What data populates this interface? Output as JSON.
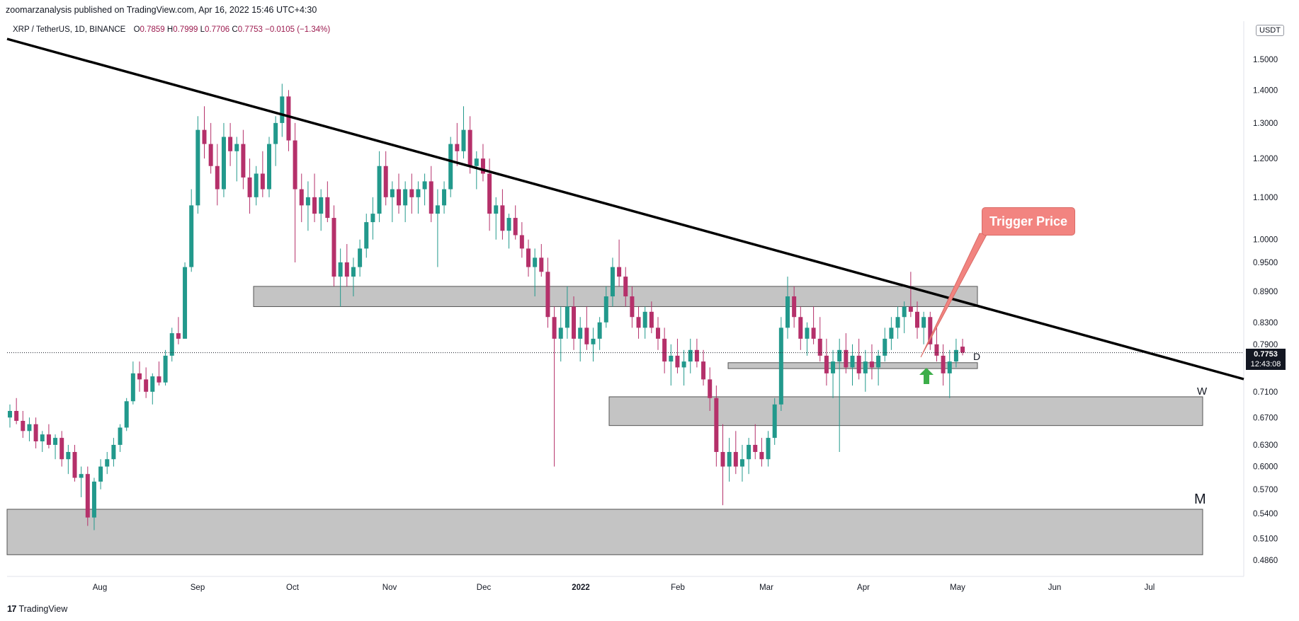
{
  "header": {
    "publisher": "zoomarzanalysis published on TradingView.com, Apr 16, 2022 15:46 UTC+4:30"
  },
  "symbol": {
    "name": "XRP / TetherUS, 1D, BINANCE",
    "open_label": "O",
    "open": "0.7859",
    "high_label": "H",
    "high": "0.7999",
    "low_label": "L",
    "low": "0.7706",
    "close_label": "C",
    "close": "0.7753",
    "change": "−0.0105 (−1.34%)"
  },
  "price_axis": {
    "unit": "USDT",
    "current_price": "0.7753",
    "countdown": "12:43:08"
  },
  "annotations": {
    "callout": "Trigger Price",
    "label_d": "D",
    "label_w": "W",
    "label_m": "M"
  },
  "footer": {
    "brand": "TradingView"
  },
  "colors": {
    "up": "#22998c",
    "down": "#b5306a",
    "zone_fill": "#c4c4c4",
    "trendline": "#000000",
    "callout": "#f28480",
    "arrow": "#3cae49"
  },
  "chart_data": {
    "type": "candlestick",
    "y_scale": "log",
    "y_ticks": [
      "1.5000",
      "1.4000",
      "1.3000",
      "1.2000",
      "1.1000",
      "1.0000",
      "0.9500",
      "0.8900",
      "0.8300",
      "0.7900",
      "0.7100",
      "0.6700",
      "0.6300",
      "0.6000",
      "0.5700",
      "0.5400",
      "0.5100",
      "0.4860"
    ],
    "x_ticks": [
      "Aug",
      "Sep",
      "Oct",
      "Nov",
      "Dec",
      "2022",
      "Feb",
      "Mar",
      "Apr",
      "May",
      "Jun",
      "Jul"
    ],
    "candles": [
      [
        0.67,
        0.69,
        0.655,
        0.68
      ],
      [
        0.68,
        0.7,
        0.66,
        0.665
      ],
      [
        0.665,
        0.68,
        0.64,
        0.65
      ],
      [
        0.65,
        0.67,
        0.635,
        0.66
      ],
      [
        0.66,
        0.67,
        0.625,
        0.635
      ],
      [
        0.635,
        0.65,
        0.62,
        0.645
      ],
      [
        0.645,
        0.66,
        0.625,
        0.63
      ],
      [
        0.63,
        0.645,
        0.61,
        0.64
      ],
      [
        0.64,
        0.65,
        0.6,
        0.61
      ],
      [
        0.61,
        0.63,
        0.59,
        0.62
      ],
      [
        0.62,
        0.63,
        0.58,
        0.585
      ],
      [
        0.585,
        0.6,
        0.56,
        0.59
      ],
      [
        0.59,
        0.6,
        0.525,
        0.535
      ],
      [
        0.535,
        0.585,
        0.52,
        0.58
      ],
      [
        0.58,
        0.61,
        0.57,
        0.6
      ],
      [
        0.6,
        0.62,
        0.59,
        0.61
      ],
      [
        0.61,
        0.64,
        0.6,
        0.63
      ],
      [
        0.63,
        0.66,
        0.62,
        0.655
      ],
      [
        0.655,
        0.7,
        0.65,
        0.695
      ],
      [
        0.695,
        0.76,
        0.69,
        0.74
      ],
      [
        0.74,
        0.76,
        0.71,
        0.73
      ],
      [
        0.73,
        0.75,
        0.7,
        0.71
      ],
      [
        0.71,
        0.74,
        0.69,
        0.735
      ],
      [
        0.735,
        0.76,
        0.72,
        0.725
      ],
      [
        0.725,
        0.78,
        0.72,
        0.77
      ],
      [
        0.77,
        0.82,
        0.76,
        0.81
      ],
      [
        0.81,
        0.84,
        0.79,
        0.8
      ],
      [
        0.8,
        0.95,
        0.8,
        0.94
      ],
      [
        0.94,
        1.12,
        0.93,
        1.08
      ],
      [
        1.08,
        1.32,
        1.06,
        1.28
      ],
      [
        1.28,
        1.35,
        1.2,
        1.24
      ],
      [
        1.24,
        1.3,
        1.16,
        1.18
      ],
      [
        1.18,
        1.24,
        1.08,
        1.12
      ],
      [
        1.12,
        1.3,
        1.1,
        1.26
      ],
      [
        1.26,
        1.3,
        1.18,
        1.22
      ],
      [
        1.22,
        1.26,
        1.14,
        1.24
      ],
      [
        1.24,
        1.28,
        1.12,
        1.15
      ],
      [
        1.15,
        1.2,
        1.06,
        1.1
      ],
      [
        1.1,
        1.18,
        1.08,
        1.16
      ],
      [
        1.16,
        1.22,
        1.1,
        1.12
      ],
      [
        1.12,
        1.26,
        1.1,
        1.24
      ],
      [
        1.24,
        1.32,
        1.18,
        1.3
      ],
      [
        1.3,
        1.42,
        1.26,
        1.38
      ],
      [
        1.38,
        1.4,
        1.22,
        1.25
      ],
      [
        1.25,
        1.3,
        0.95,
        1.12
      ],
      [
        1.12,
        1.16,
        1.04,
        1.08
      ],
      [
        1.08,
        1.14,
        1.02,
        1.1
      ],
      [
        1.1,
        1.16,
        1.04,
        1.06
      ],
      [
        1.06,
        1.12,
        1.02,
        1.1
      ],
      [
        1.1,
        1.14,
        1.04,
        1.05
      ],
      [
        1.05,
        1.08,
        0.9,
        0.92
      ],
      [
        0.92,
        0.98,
        0.86,
        0.95
      ],
      [
        0.95,
        0.99,
        0.9,
        0.92
      ],
      [
        0.92,
        0.96,
        0.88,
        0.94
      ],
      [
        0.94,
        1.0,
        0.92,
        0.98
      ],
      [
        0.98,
        1.06,
        0.96,
        1.04
      ],
      [
        1.04,
        1.1,
        1.0,
        1.06
      ],
      [
        1.06,
        1.22,
        1.04,
        1.18
      ],
      [
        1.18,
        1.22,
        1.08,
        1.1
      ],
      [
        1.1,
        1.14,
        1.04,
        1.12
      ],
      [
        1.12,
        1.16,
        1.06,
        1.08
      ],
      [
        1.08,
        1.14,
        1.04,
        1.12
      ],
      [
        1.12,
        1.16,
        1.06,
        1.1
      ],
      [
        1.1,
        1.14,
        1.06,
        1.12
      ],
      [
        1.12,
        1.16,
        1.08,
        1.14
      ],
      [
        1.14,
        1.18,
        1.04,
        1.06
      ],
      [
        1.06,
        1.12,
        0.94,
        1.08
      ],
      [
        1.08,
        1.14,
        1.06,
        1.12
      ],
      [
        1.12,
        1.26,
        1.1,
        1.24
      ],
      [
        1.24,
        1.3,
        1.18,
        1.22
      ],
      [
        1.22,
        1.35,
        1.2,
        1.28
      ],
      [
        1.28,
        1.32,
        1.16,
        1.18
      ],
      [
        1.18,
        1.22,
        1.12,
        1.2
      ],
      [
        1.2,
        1.24,
        1.14,
        1.16
      ],
      [
        1.16,
        1.2,
        1.02,
        1.06
      ],
      [
        1.06,
        1.1,
        1.0,
        1.08
      ],
      [
        1.08,
        1.12,
        1.0,
        1.02
      ],
      [
        1.02,
        1.06,
        0.98,
        1.05
      ],
      [
        1.05,
        1.08,
        1.0,
        1.01
      ],
      [
        1.01,
        1.04,
        0.96,
        0.98
      ],
      [
        0.98,
        1.0,
        0.92,
        0.94
      ],
      [
        0.94,
        0.98,
        0.88,
        0.96
      ],
      [
        0.96,
        0.99,
        0.92,
        0.93
      ],
      [
        0.93,
        0.96,
        0.82,
        0.84
      ],
      [
        0.84,
        0.86,
        0.6,
        0.8
      ],
      [
        0.8,
        0.86,
        0.76,
        0.82
      ],
      [
        0.82,
        0.9,
        0.8,
        0.86
      ],
      [
        0.86,
        0.88,
        0.78,
        0.8
      ],
      [
        0.8,
        0.84,
        0.76,
        0.82
      ],
      [
        0.82,
        0.86,
        0.78,
        0.79
      ],
      [
        0.79,
        0.82,
        0.76,
        0.8
      ],
      [
        0.8,
        0.84,
        0.78,
        0.83
      ],
      [
        0.83,
        0.9,
        0.82,
        0.88
      ],
      [
        0.88,
        0.96,
        0.86,
        0.94
      ],
      [
        0.94,
        1.0,
        0.9,
        0.92
      ],
      [
        0.92,
        0.94,
        0.86,
        0.88
      ],
      [
        0.88,
        0.9,
        0.82,
        0.84
      ],
      [
        0.84,
        0.86,
        0.8,
        0.82
      ],
      [
        0.82,
        0.86,
        0.8,
        0.85
      ],
      [
        0.85,
        0.87,
        0.81,
        0.82
      ],
      [
        0.82,
        0.84,
        0.78,
        0.8
      ],
      [
        0.8,
        0.82,
        0.74,
        0.76
      ],
      [
        0.76,
        0.79,
        0.72,
        0.77
      ],
      [
        0.77,
        0.8,
        0.74,
        0.75
      ],
      [
        0.75,
        0.78,
        0.72,
        0.76
      ],
      [
        0.76,
        0.8,
        0.74,
        0.78
      ],
      [
        0.78,
        0.8,
        0.75,
        0.76
      ],
      [
        0.76,
        0.78,
        0.72,
        0.73
      ],
      [
        0.73,
        0.75,
        0.68,
        0.7
      ],
      [
        0.7,
        0.72,
        0.6,
        0.62
      ],
      [
        0.62,
        0.66,
        0.55,
        0.6
      ],
      [
        0.6,
        0.64,
        0.58,
        0.62
      ],
      [
        0.62,
        0.65,
        0.59,
        0.6
      ],
      [
        0.6,
        0.63,
        0.58,
        0.61
      ],
      [
        0.61,
        0.64,
        0.59,
        0.63
      ],
      [
        0.63,
        0.66,
        0.61,
        0.62
      ],
      [
        0.62,
        0.64,
        0.6,
        0.61
      ],
      [
        0.61,
        0.65,
        0.6,
        0.64
      ],
      [
        0.64,
        0.7,
        0.63,
        0.69
      ],
      [
        0.69,
        0.84,
        0.68,
        0.82
      ],
      [
        0.82,
        0.92,
        0.8,
        0.88
      ],
      [
        0.88,
        0.9,
        0.82,
        0.84
      ],
      [
        0.84,
        0.86,
        0.78,
        0.8
      ],
      [
        0.8,
        0.83,
        0.77,
        0.82
      ],
      [
        0.82,
        0.86,
        0.79,
        0.8
      ],
      [
        0.8,
        0.84,
        0.76,
        0.77
      ],
      [
        0.77,
        0.8,
        0.72,
        0.74
      ],
      [
        0.74,
        0.78,
        0.7,
        0.76
      ],
      [
        0.76,
        0.8,
        0.62,
        0.78
      ],
      [
        0.78,
        0.81,
        0.74,
        0.75
      ],
      [
        0.75,
        0.79,
        0.72,
        0.77
      ],
      [
        0.77,
        0.8,
        0.73,
        0.74
      ],
      [
        0.74,
        0.78,
        0.71,
        0.76
      ],
      [
        0.76,
        0.79,
        0.73,
        0.75
      ],
      [
        0.75,
        0.78,
        0.72,
        0.77
      ],
      [
        0.77,
        0.82,
        0.76,
        0.8
      ],
      [
        0.8,
        0.84,
        0.78,
        0.82
      ],
      [
        0.82,
        0.86,
        0.8,
        0.84
      ],
      [
        0.84,
        0.87,
        0.81,
        0.86
      ],
      [
        0.86,
        0.93,
        0.84,
        0.85
      ],
      [
        0.85,
        0.87,
        0.8,
        0.82
      ],
      [
        0.82,
        0.85,
        0.79,
        0.84
      ],
      [
        0.84,
        0.85,
        0.78,
        0.79
      ],
      [
        0.79,
        0.82,
        0.76,
        0.77
      ],
      [
        0.77,
        0.79,
        0.72,
        0.74
      ],
      [
        0.74,
        0.78,
        0.7,
        0.76
      ],
      [
        0.76,
        0.8,
        0.75,
        0.78
      ],
      [
        0.7859,
        0.7999,
        0.7706,
        0.7753
      ]
    ],
    "zones": [
      {
        "label": "",
        "top": 0.9,
        "bottom": 0.86
      },
      {
        "label": "D",
        "top": 0.758,
        "bottom": 0.748
      },
      {
        "label": "W",
        "top": 0.702,
        "bottom": 0.658
      },
      {
        "label": "M",
        "top": 0.545,
        "bottom": 0.492
      }
    ],
    "current_price": 0.7753
  }
}
